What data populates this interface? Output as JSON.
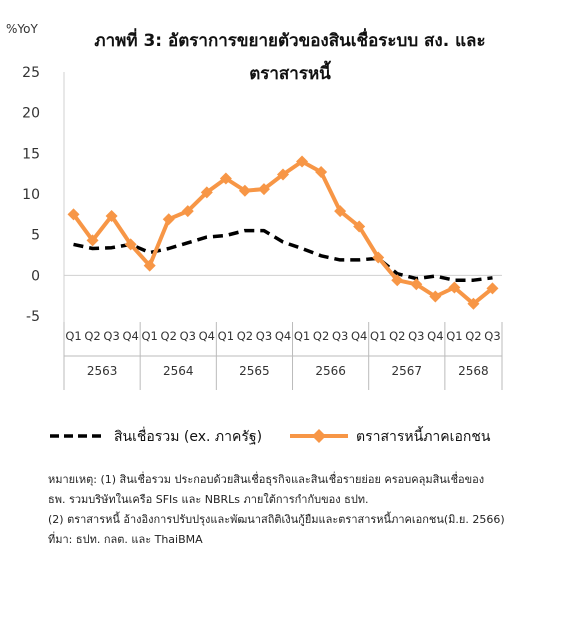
{
  "chart_data": {
    "type": "line",
    "title_line1": "ภาพที่ 3: อัตราการขยายตัวของสินเชื่อระบบ สง. และ",
    "title_line2": "ตราสารหนี้",
    "ylabel": "%YoY",
    "ylim": [
      -5,
      25
    ],
    "yticks": [
      25,
      20,
      15,
      10,
      5,
      0,
      -5
    ],
    "quarters": [
      "Q1",
      "Q2",
      "Q3",
      "Q4",
      "Q1",
      "Q2",
      "Q3",
      "Q4",
      "Q1",
      "Q2",
      "Q3",
      "Q4",
      "Q1",
      "Q2",
      "Q3",
      "Q4",
      "Q1",
      "Q2",
      "Q3",
      "Q4",
      "Q1",
      "Q2",
      "Q3"
    ],
    "years": [
      {
        "label": "2563",
        "quarters": 4
      },
      {
        "label": "2564",
        "quarters": 4
      },
      {
        "label": "2565",
        "quarters": 4
      },
      {
        "label": "2566",
        "quarters": 4
      },
      {
        "label": "2567",
        "quarters": 4
      },
      {
        "label": "2568",
        "quarters": 3
      }
    ],
    "series": [
      {
        "name": "สินเชื่อรวม (ex. ภาครัฐ)",
        "style": "dashed",
        "color": "#000000",
        "values": [
          3.8,
          3.3,
          3.4,
          3.8,
          2.8,
          3.3,
          4.0,
          4.7,
          4.9,
          5.5,
          5.5,
          4.1,
          3.3,
          2.4,
          1.9,
          1.9,
          2.1,
          0.2,
          -0.4,
          -0.1,
          -0.6,
          -0.6,
          -0.3
        ]
      },
      {
        "name": "ตราสารหนี้ภาคเอกชน",
        "style": "solid-diamond",
        "color": "#F79646",
        "values": [
          7.5,
          4.3,
          7.3,
          3.8,
          1.2,
          6.9,
          7.9,
          10.2,
          11.9,
          10.4,
          10.6,
          12.4,
          14.0,
          12.7,
          7.9,
          6.0,
          2.2,
          -0.6,
          -1.1,
          -2.6,
          -1.5,
          -3.5,
          -1.6
        ]
      }
    ]
  },
  "notes": {
    "line1": "หมายเหตุ: (1) สินเชื่อรวม ประกอบด้วยสินเชื่อธุรกิจและสินเชื่อรายย่อย ครอบคลุมสินเชื่อของ",
    "line2": "ธพ. รวมบริษัทในเครือ SFIs และ NBRLs ภายใต้การกำกับของ ธปท.",
    "line3": "(2) ตราสารหนี้ อ้างอิงการปรับปรุงและพัฒนาสถิติเงินกู้ยืมและตราสารหนี้ภาคเอกชน(มิ.ย. 2566)",
    "line4": "ที่มา: ธปท. กลต. และ ThaiBMA"
  }
}
